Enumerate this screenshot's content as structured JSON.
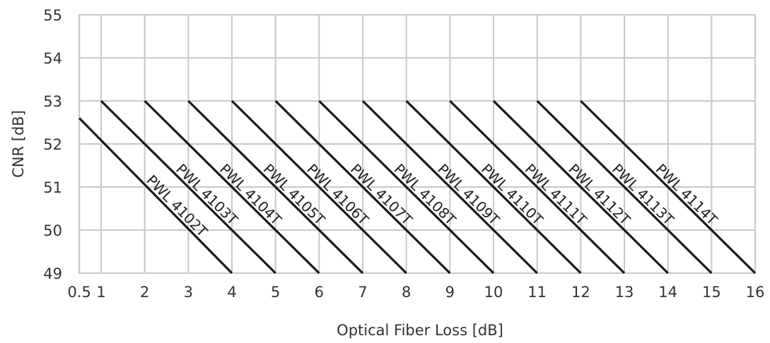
{
  "chart_data": {
    "type": "line",
    "xlabel": "Optical Fiber Loss [dB]",
    "ylabel": "CNR [dB]",
    "xlim": [
      0.5,
      16
    ],
    "ylim": [
      49,
      55
    ],
    "x_ticks": [
      "0.5",
      "1",
      "2",
      "3",
      "4",
      "5",
      "6",
      "7",
      "8",
      "9",
      "10",
      "11",
      "12",
      "13",
      "14",
      "15",
      "16"
    ],
    "x_tick_values": [
      0.5,
      1,
      2,
      3,
      4,
      5,
      6,
      7,
      8,
      9,
      10,
      11,
      12,
      13,
      14,
      15,
      16
    ],
    "y_ticks": [
      "49",
      "50",
      "51",
      "52",
      "53",
      "54",
      "55"
    ],
    "y_tick_values": [
      49,
      50,
      51,
      52,
      53,
      54,
      55
    ],
    "grid": true,
    "legend": "none",
    "series": [
      {
        "name": "PWL 4102T",
        "x": [
          0.5,
          4
        ],
        "y": [
          52.6,
          49
        ]
      },
      {
        "name": "PWL 4103T",
        "x": [
          1,
          5
        ],
        "y": [
          53,
          49
        ]
      },
      {
        "name": "PWL 4104T",
        "x": [
          2,
          6
        ],
        "y": [
          53,
          49
        ]
      },
      {
        "name": "PWL 4105T",
        "x": [
          3,
          7
        ],
        "y": [
          53,
          49
        ]
      },
      {
        "name": "PWL 4106T",
        "x": [
          4,
          8
        ],
        "y": [
          53,
          49
        ]
      },
      {
        "name": "PWL 4107T",
        "x": [
          5,
          9
        ],
        "y": [
          53,
          49
        ]
      },
      {
        "name": "PWL 4108T",
        "x": [
          6,
          10
        ],
        "y": [
          53,
          49
        ]
      },
      {
        "name": "PWL 4109T",
        "x": [
          7,
          11
        ],
        "y": [
          53,
          49
        ]
      },
      {
        "name": "PWL 4110T",
        "x": [
          8,
          12
        ],
        "y": [
          53,
          49
        ]
      },
      {
        "name": "PWL 4111T",
        "x": [
          9,
          13
        ],
        "y": [
          53,
          49
        ]
      },
      {
        "name": "PWL 4112T",
        "x": [
          10,
          14
        ],
        "y": [
          53,
          49
        ]
      },
      {
        "name": "PWL 4113T",
        "x": [
          11,
          15
        ],
        "y": [
          53,
          49
        ]
      },
      {
        "name": "PWL 4114T",
        "x": [
          12,
          16
        ],
        "y": [
          53,
          49
        ]
      }
    ]
  }
}
